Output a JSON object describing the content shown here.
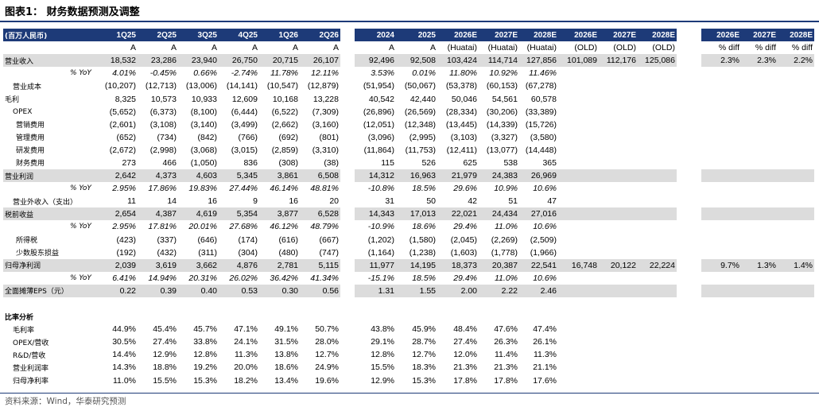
{
  "title": "图表1：  财务数据预测及调整",
  "source": "资料来源：Wind，华泰研究预测",
  "main_headers": [
    "(百万人民币)",
    "1Q25",
    "2Q25",
    "3Q25",
    "4Q25",
    "1Q26",
    "2Q26",
    "",
    "2024",
    "2025",
    "2026E",
    "2027E",
    "2028E"
  ],
  "old_headers": [
    "2026E",
    "2027E",
    "2028E"
  ],
  "diff_headers": [
    "2026E",
    "2027E",
    "2028E"
  ],
  "rows": [
    {
      "label": "",
      "style": "sub",
      "cells": [
        "A",
        "A",
        "A",
        "A",
        "A",
        "A",
        "",
        "A",
        "A",
        "(Huatai)",
        "(Huatai)",
        "(Huatai)"
      ],
      "old": [
        "(OLD)",
        "(OLD)",
        "(OLD)"
      ],
      "diff": [
        "% diff",
        "% diff",
        "% diff"
      ]
    },
    {
      "label": "营业收入",
      "style": "hl",
      "cells": [
        "18,532",
        "23,286",
        "23,940",
        "26,750",
        "20,715",
        "26,107",
        "",
        "92,496",
        "92,508",
        "103,424",
        "114,714",
        "127,856"
      ],
      "old": [
        "101,089",
        "112,176",
        "125,086"
      ],
      "diff": [
        "2.3%",
        "2.3%",
        "2.2%"
      ]
    },
    {
      "label": "% YoY",
      "style": "pct",
      "cells": [
        "4.01%",
        "-0.45%",
        "0.66%",
        "-2.74%",
        "11.78%",
        "12.11%",
        "",
        "3.53%",
        "0.01%",
        "11.80%",
        "10.92%",
        "11.46%"
      ],
      "old": [
        "",
        "",
        ""
      ],
      "diff": [
        "",
        "",
        ""
      ]
    },
    {
      "label": "营业成本",
      "style": "ind1",
      "cells": [
        "(10,207)",
        "(12,713)",
        "(13,006)",
        "(14,141)",
        "(10,547)",
        "(12,879)",
        "",
        "(51,954)",
        "(50,067)",
        "(53,378)",
        "(60,153)",
        "(67,278)"
      ],
      "old": [
        "",
        "",
        ""
      ],
      "diff": [
        "",
        "",
        ""
      ]
    },
    {
      "label": "毛利",
      "style": "plain",
      "cells": [
        "8,325",
        "10,573",
        "10,933",
        "12,609",
        "10,168",
        "13,228",
        "",
        "40,542",
        "42,440",
        "50,046",
        "54,561",
        "60,578"
      ],
      "old": [
        "",
        "",
        ""
      ],
      "diff": [
        "",
        "",
        ""
      ]
    },
    {
      "label": "OPEX",
      "style": "ind1",
      "cells": [
        "(5,652)",
        "(6,373)",
        "(8,100)",
        "(6,444)",
        "(6,522)",
        "(7,309)",
        "",
        "(26,896)",
        "(26,569)",
        "(28,334)",
        "(30,206)",
        "(33,389)"
      ],
      "old": [
        "",
        "",
        ""
      ],
      "diff": [
        "",
        "",
        ""
      ]
    },
    {
      "label": "营销费用",
      "style": "ind2",
      "cells": [
        "(2,601)",
        "(3,108)",
        "(3,140)",
        "(3,499)",
        "(2,662)",
        "(3,160)",
        "",
        "(12,051)",
        "(12,348)",
        "(13,445)",
        "(14,339)",
        "(15,726)"
      ],
      "old": [
        "",
        "",
        ""
      ],
      "diff": [
        "",
        "",
        ""
      ]
    },
    {
      "label": "管理费用",
      "style": "ind2",
      "cells": [
        "(652)",
        "(734)",
        "(842)",
        "(766)",
        "(692)",
        "(801)",
        "",
        "(3,096)",
        "(2,995)",
        "(3,103)",
        "(3,327)",
        "(3,580)"
      ],
      "old": [
        "",
        "",
        ""
      ],
      "diff": [
        "",
        "",
        ""
      ]
    },
    {
      "label": "研发费用",
      "style": "ind2",
      "cells": [
        "(2,672)",
        "(2,998)",
        "(3,068)",
        "(3,015)",
        "(2,859)",
        "(3,310)",
        "",
        "(11,864)",
        "(11,753)",
        "(12,411)",
        "(13,077)",
        "(14,448)"
      ],
      "old": [
        "",
        "",
        ""
      ],
      "diff": [
        "",
        "",
        ""
      ]
    },
    {
      "label": "财务费用",
      "style": "ind2",
      "cells": [
        "273",
        "466",
        "(1,050)",
        "836",
        "(308)",
        "(38)",
        "",
        "115",
        "526",
        "625",
        "538",
        "365"
      ],
      "old": [
        "",
        "",
        ""
      ],
      "diff": [
        "",
        "",
        ""
      ]
    },
    {
      "label": "营业利润",
      "style": "hl",
      "cells": [
        "2,642",
        "4,373",
        "4,603",
        "5,345",
        "3,861",
        "6,508",
        "",
        "14,312",
        "16,963",
        "21,979",
        "24,383",
        "26,969"
      ],
      "old": [
        "",
        "",
        ""
      ],
      "diff": [
        "",
        "",
        ""
      ]
    },
    {
      "label": "% YoY",
      "style": "pct",
      "cells": [
        "2.95%",
        "17.86%",
        "19.83%",
        "27.44%",
        "46.14%",
        "48.81%",
        "",
        "-10.8%",
        "18.5%",
        "29.6%",
        "10.9%",
        "10.6%"
      ],
      "old": [
        "",
        "",
        ""
      ],
      "diff": [
        "",
        "",
        ""
      ]
    },
    {
      "label": "营业外收入（支出）",
      "style": "ind1",
      "cells": [
        "11",
        "14",
        "16",
        "9",
        "16",
        "20",
        "",
        "31",
        "50",
        "42",
        "51",
        "47"
      ],
      "old": [
        "",
        "",
        ""
      ],
      "diff": [
        "",
        "",
        ""
      ]
    },
    {
      "label": "税前收益",
      "style": "hl",
      "cells": [
        "2,654",
        "4,387",
        "4,619",
        "5,354",
        "3,877",
        "6,528",
        "",
        "14,343",
        "17,013",
        "22,021",
        "24,434",
        "27,016"
      ],
      "old": [
        "",
        "",
        ""
      ],
      "diff": [
        "",
        "",
        ""
      ]
    },
    {
      "label": "% YoY",
      "style": "pct",
      "cells": [
        "2.95%",
        "17.81%",
        "20.01%",
        "27.68%",
        "46.12%",
        "48.79%",
        "",
        "-10.9%",
        "18.6%",
        "29.4%",
        "11.0%",
        "10.6%"
      ],
      "old": [
        "",
        "",
        ""
      ],
      "diff": [
        "",
        "",
        ""
      ]
    },
    {
      "label": "所得税",
      "style": "ind2",
      "cells": [
        "(423)",
        "(337)",
        "(646)",
        "(174)",
        "(616)",
        "(667)",
        "",
        "(1,202)",
        "(1,580)",
        "(2,045)",
        "(2,269)",
        "(2,509)"
      ],
      "old": [
        "",
        "",
        ""
      ],
      "diff": [
        "",
        "",
        ""
      ]
    },
    {
      "label": "少数股东损益",
      "style": "ind2",
      "cells": [
        "(192)",
        "(432)",
        "(311)",
        "(304)",
        "(480)",
        "(747)",
        "",
        "(1,164)",
        "(1,238)",
        "(1,603)",
        "(1,778)",
        "(1,966)"
      ],
      "old": [
        "",
        "",
        ""
      ],
      "diff": [
        "",
        "",
        ""
      ]
    },
    {
      "label": "归母净利润",
      "style": "hl",
      "cells": [
        "2,039",
        "3,619",
        "3,662",
        "4,876",
        "2,781",
        "5,115",
        "",
        "11,977",
        "14,195",
        "18,373",
        "20,387",
        "22,541"
      ],
      "old": [
        "16,748",
        "20,122",
        "22,224"
      ],
      "diff": [
        "9.7%",
        "1.3%",
        "1.4%"
      ]
    },
    {
      "label": "% YoY",
      "style": "pct",
      "cells": [
        "6.41%",
        "14.94%",
        "20.31%",
        "26.02%",
        "36.42%",
        "41.34%",
        "",
        "-15.1%",
        "18.5%",
        "29.4%",
        "11.0%",
        "10.6%"
      ],
      "old": [
        "",
        "",
        ""
      ],
      "diff": [
        "",
        "",
        ""
      ]
    },
    {
      "label": "全面摊薄EPS（元）",
      "style": "hl",
      "cells": [
        "0.22",
        "0.39",
        "0.40",
        "0.53",
        "0.30",
        "0.56",
        "",
        "1.31",
        "1.55",
        "2.00",
        "2.22",
        "2.46"
      ],
      "old": [
        "",
        "",
        ""
      ],
      "diff": [
        "",
        "",
        ""
      ]
    },
    {
      "label": "",
      "style": "plain",
      "cells": [
        "",
        "",
        "",
        "",
        "",
        "",
        "",
        "",
        "",
        "",
        "",
        ""
      ],
      "old": [
        "",
        "",
        ""
      ],
      "diff": [
        "",
        "",
        ""
      ]
    },
    {
      "label": "比率分析",
      "style": "section",
      "cells": [
        "",
        "",
        "",
        "",
        "",
        "",
        "",
        "",
        "",
        "",
        "",
        ""
      ],
      "old": [
        "",
        "",
        ""
      ],
      "diff": [
        "",
        "",
        ""
      ]
    },
    {
      "label": "毛利率",
      "style": "ind1",
      "cells": [
        "44.9%",
        "45.4%",
        "45.7%",
        "47.1%",
        "49.1%",
        "50.7%",
        "",
        "43.8%",
        "45.9%",
        "48.4%",
        "47.6%",
        "47.4%"
      ],
      "old": [
        "",
        "",
        ""
      ],
      "diff": [
        "",
        "",
        ""
      ]
    },
    {
      "label": "OPEX/营收",
      "style": "ind1",
      "cells": [
        "30.5%",
        "27.4%",
        "33.8%",
        "24.1%",
        "31.5%",
        "28.0%",
        "",
        "29.1%",
        "28.7%",
        "27.4%",
        "26.3%",
        "26.1%"
      ],
      "old": [
        "",
        "",
        ""
      ],
      "diff": [
        "",
        "",
        ""
      ]
    },
    {
      "label": "R&D/营收",
      "style": "ind1",
      "cells": [
        "14.4%",
        "12.9%",
        "12.8%",
        "11.3%",
        "13.8%",
        "12.7%",
        "",
        "12.8%",
        "12.7%",
        "12.0%",
        "11.4%",
        "11.3%"
      ],
      "old": [
        "",
        "",
        ""
      ],
      "diff": [
        "",
        "",
        ""
      ]
    },
    {
      "label": "营业利润率",
      "style": "ind1",
      "cells": [
        "14.3%",
        "18.8%",
        "19.2%",
        "20.0%",
        "18.6%",
        "24.9%",
        "",
        "15.5%",
        "18.3%",
        "21.3%",
        "21.3%",
        "21.1%"
      ],
      "old": [
        "",
        "",
        ""
      ],
      "diff": [
        "",
        "",
        ""
      ]
    },
    {
      "label": "归母净利率",
      "style": "ind1",
      "cells": [
        "11.0%",
        "15.5%",
        "15.3%",
        "18.2%",
        "13.4%",
        "19.6%",
        "",
        "12.9%",
        "15.3%",
        "17.8%",
        "17.8%",
        "17.6%"
      ],
      "old": [
        "",
        "",
        ""
      ],
      "diff": [
        "",
        "",
        ""
      ]
    }
  ]
}
